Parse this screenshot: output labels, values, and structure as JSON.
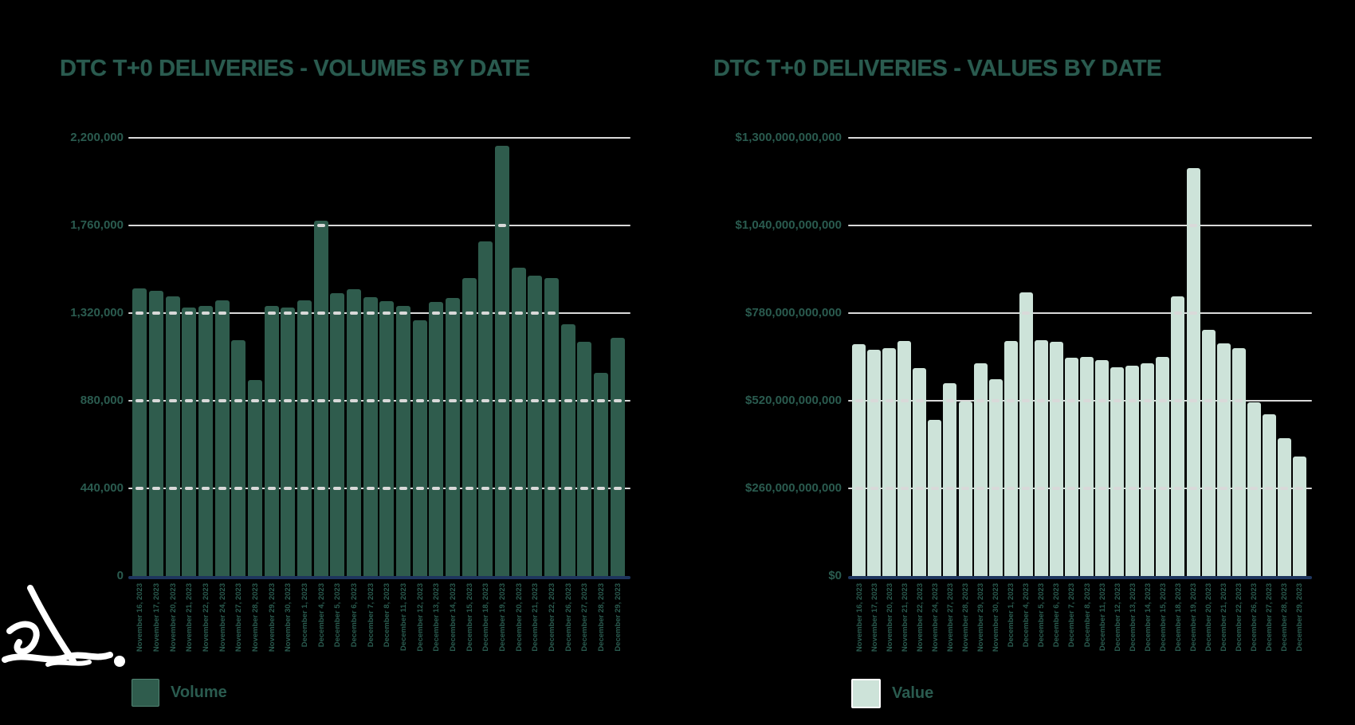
{
  "page": {
    "background": "#000000"
  },
  "colors": {
    "text_green": "#2A5B4F",
    "volume_bar": "#2F5C4D",
    "value_bar": "#CDE3D9",
    "gridline": "#D9D9D9",
    "axis_line": "#1E355E",
    "tick_dash": "#D9D9D9",
    "value_swatch_border": "#FFFFFF",
    "scribble": "#FFFFFF"
  },
  "chart_data": [
    {
      "type": "bar",
      "title": "DTC T+0 DELIVERIES - VOLUMES BY DATE",
      "legend": "Volume",
      "series_name": "Volume",
      "xlabel": "",
      "ylabel": "",
      "ylim": [
        0,
        2200000
      ],
      "grid": true,
      "legend_position": "bottom-left",
      "bar_color": "#2F5C4D",
      "y_ticks": [
        {
          "label": "2,200,000",
          "value": 2200000
        },
        {
          "label": "1,760,000",
          "value": 1760000
        },
        {
          "label": "1,320,000",
          "value": 1320000
        },
        {
          "label": "880,000",
          "value": 880000
        },
        {
          "label": "440,000",
          "value": 440000
        },
        {
          "label": "0",
          "value": 0
        }
      ],
      "categories": [
        "November 16, 2023",
        "November 17, 2023",
        "November 20, 2023",
        "November 21, 2023",
        "November 22, 2023",
        "November 24, 2023",
        "November 27, 2023",
        "November 28, 2023",
        "November 29, 2023",
        "November 30, 2023",
        "December 1, 2023",
        "December 4, 2023",
        "December 5, 2023",
        "December 6, 2023",
        "December 7, 2023",
        "December 8, 2023",
        "December 11, 2023",
        "December 12, 2023",
        "December 13, 2023",
        "December 14, 2023",
        "December 15, 2023",
        "December 18, 2023",
        "December 19, 2023",
        "December 20, 2023",
        "December 21, 2023",
        "December 22, 2023",
        "December 26, 2023",
        "December 27, 2023",
        "December 28, 2023",
        "December 29, 2023"
      ],
      "values": [
        1446000,
        1432000,
        1405000,
        1347000,
        1355000,
        1385000,
        1185000,
        986000,
        1355000,
        1347000,
        1385000,
        1786000,
        1422000,
        1439000,
        1399000,
        1382000,
        1356000,
        1286000,
        1375000,
        1395000,
        1497000,
        1679000,
        2160000,
        1547000,
        1510000,
        1497000,
        1263000,
        1176000,
        1022000,
        1196000
      ]
    },
    {
      "type": "bar",
      "title": "DTC T+0 DELIVERIES - VALUES BY DATE",
      "legend": "Value",
      "series_name": "Value",
      "xlabel": "",
      "ylabel": "",
      "ylim": [
        0,
        1300000000000
      ],
      "grid": true,
      "legend_position": "bottom-left",
      "bar_color": "#CDE3D9",
      "y_ticks": [
        {
          "label": "$1,300,000,000,000",
          "value": 1300000000000
        },
        {
          "label": "$1,040,000,000,000",
          "value": 1040000000000
        },
        {
          "label": "$780,000,000,000",
          "value": 780000000000
        },
        {
          "label": "$520,000,000,000",
          "value": 520000000000
        },
        {
          "label": "$260,000,000,000",
          "value": 260000000000
        },
        {
          "label": "$0",
          "value": 0
        }
      ],
      "categories": [
        "November 16, 2023",
        "November 17, 2023",
        "November 20, 2023",
        "November 21, 2023",
        "November 22, 2023",
        "November 24, 2023",
        "November 27, 2023",
        "November 28, 2023",
        "November 29, 2023",
        "November 30, 2023",
        "December 1, 2023",
        "December 4, 2023",
        "December 5, 2023",
        "December 6, 2023",
        "December 7, 2023",
        "December 8, 2023",
        "December 11, 2023",
        "December 12, 2023",
        "December 13, 2023",
        "December 14, 2023",
        "December 15, 2023",
        "December 18, 2023",
        "December 19, 2023",
        "December 20, 2023",
        "December 21, 2023",
        "December 22, 2023",
        "December 26, 2023",
        "December 27, 2023",
        "December 28, 2023",
        "December 29, 2023"
      ],
      "values": [
        687000000000,
        671000000000,
        675000000000,
        698000000000,
        616000000000,
        463000000000,
        571000000000,
        518000000000,
        632000000000,
        585000000000,
        697000000000,
        841000000000,
        700000000000,
        695000000000,
        648000000000,
        650000000000,
        640000000000,
        620000000000,
        625000000000,
        630000000000,
        650000000000,
        830000000000,
        1210000000000,
        730000000000,
        690000000000,
        675000000000,
        515000000000,
        480000000000,
        410000000000,
        355000000000
      ]
    }
  ]
}
